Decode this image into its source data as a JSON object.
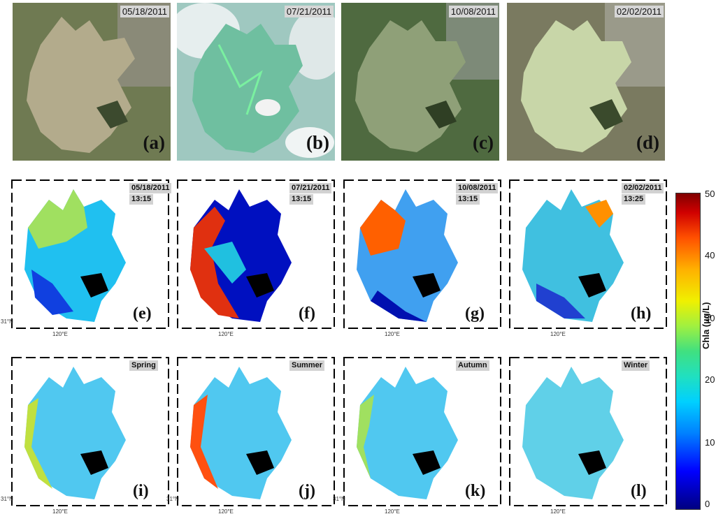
{
  "photos": [
    {
      "date": "05/18/2011",
      "letter": "(a)"
    },
    {
      "date": "07/21/2011",
      "letter": "(b)"
    },
    {
      "date": "10/08/2011",
      "letter": "(c)"
    },
    {
      "date": "02/02/2011",
      "letter": "(d)"
    }
  ],
  "daily_maps": [
    {
      "date": "05/18/2011",
      "time": "13:15",
      "letter": "(e)"
    },
    {
      "date": "07/21/2011",
      "time": "13:15",
      "letter": "(f)"
    },
    {
      "date": "10/08/2011",
      "time": "13:15",
      "letter": "(g)"
    },
    {
      "date": "02/02/2011",
      "time": "13:25",
      "letter": "(h)"
    }
  ],
  "seasonal_maps": [
    {
      "season": "Spring",
      "letter": "(i)"
    },
    {
      "season": "Summer",
      "letter": "(j)"
    },
    {
      "season": "Autumn",
      "letter": "(k)"
    },
    {
      "season": "Winter",
      "letter": "(l)"
    }
  ],
  "axis_ticks": {
    "lat": "31°N",
    "lon": "120°E"
  },
  "colorbar": {
    "title": "Chla (µg/L)",
    "ticks": [
      "50",
      "40",
      "30",
      "20",
      "10",
      "0"
    ],
    "colors": [
      "#000080",
      "#0000ff",
      "#00d0ff",
      "#40e080",
      "#f0f000",
      "#ff5000",
      "#800000"
    ]
  }
}
